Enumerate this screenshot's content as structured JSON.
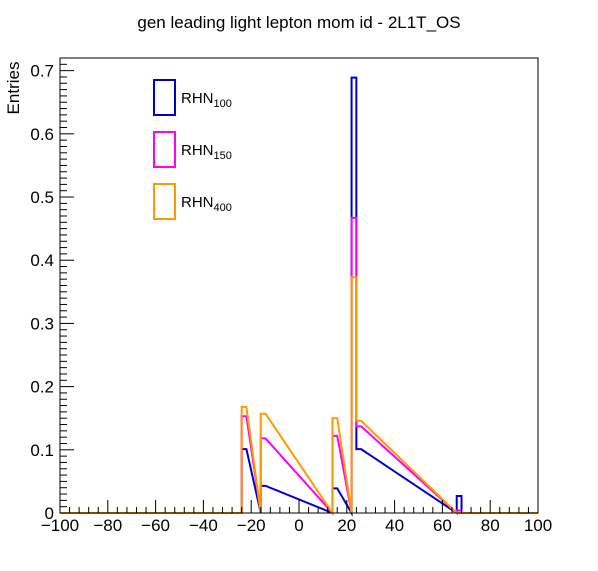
{
  "chart_data": {
    "type": "histogram",
    "title": "gen leading light lepton mom id - 2L1T_OS",
    "xlabel": "",
    "ylabel": "Entries",
    "xlim": [
      -100,
      100
    ],
    "ylim": [
      0,
      0.72
    ],
    "bin_width": 2,
    "x_ticks": [
      -100,
      -80,
      -60,
      -40,
      -20,
      0,
      20,
      40,
      60,
      80,
      100
    ],
    "x_tick_labels": [
      "−100",
      "−80",
      "−60",
      "−40",
      "−20",
      "0",
      "20",
      "40",
      "60",
      "80",
      "100"
    ],
    "y_ticks": [
      0,
      0.1,
      0.2,
      0.3,
      0.4,
      0.5,
      0.6,
      0.7
    ],
    "y_tick_labels": [
      "0",
      "0.1",
      "0.2",
      "0.3",
      "0.4",
      "0.5",
      "0.6",
      "0.7"
    ],
    "grid": false,
    "legend_position": "top-left",
    "series": [
      {
        "name_base": "RHN",
        "name_sub": "100",
        "color": "#0000cc",
        "bins": [
          {
            "x0": -24,
            "x1": -22,
            "value": 0.101
          },
          {
            "x0": -16,
            "x1": -14,
            "value": 0.043
          },
          {
            "x0": 14,
            "x1": 16,
            "value": 0.039
          },
          {
            "x0": 22,
            "x1": 24,
            "value": 0.689
          },
          {
            "x0": 24,
            "x1": 26,
            "value": 0.101
          },
          {
            "x0": 66,
            "x1": 68,
            "value": 0.027
          }
        ]
      },
      {
        "name_base": "RHN",
        "name_sub": "150",
        "color": "#ff00ff",
        "bins": [
          {
            "x0": -24,
            "x1": -22,
            "value": 0.153
          },
          {
            "x0": -16,
            "x1": -14,
            "value": 0.118
          },
          {
            "x0": 14,
            "x1": 16,
            "value": 0.122
          },
          {
            "x0": 22,
            "x1": 24,
            "value": 0.467
          },
          {
            "x0": 24,
            "x1": 26,
            "value": 0.137
          },
          {
            "x0": 66,
            "x1": 68,
            "value": 0.004
          }
        ]
      },
      {
        "name_base": "RHN",
        "name_sub": "400",
        "color": "#ff9900",
        "bins": [
          {
            "x0": -24,
            "x1": -22,
            "value": 0.168
          },
          {
            "x0": -16,
            "x1": -14,
            "value": 0.157
          },
          {
            "x0": 14,
            "x1": 16,
            "value": 0.15
          },
          {
            "x0": 22,
            "x1": 24,
            "value": 0.373
          },
          {
            "x0": 24,
            "x1": 26,
            "value": 0.146
          },
          {
            "x0": 66,
            "x1": 68,
            "value": 0.0
          }
        ]
      }
    ]
  }
}
